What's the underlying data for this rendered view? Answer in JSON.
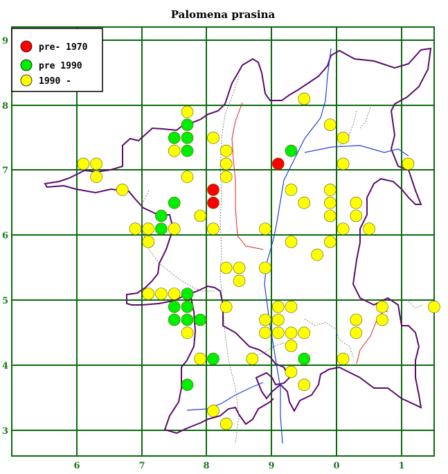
{
  "title": "Palomena prasina",
  "colors": {
    "grid": "#0b6b0b",
    "border": "#5b0a6a",
    "river": "#1f3fe0",
    "road": "#e02020",
    "pre1970": "#ff0000",
    "pre1990": "#00ee00",
    "post1990": "#ffff00"
  },
  "axes": {
    "x_labels": [
      "6",
      "7",
      "8",
      "9",
      "0",
      "1"
    ],
    "y_labels": [
      "9",
      "8",
      "7",
      "6",
      "5",
      "4",
      "3"
    ]
  },
  "legend": {
    "items": [
      {
        "label": "pre- 1970",
        "color_key": "pre1970"
      },
      {
        "label": "pre 1990",
        "color_key": "pre1990"
      },
      {
        "label": "1990 -",
        "color_key": "post1990"
      }
    ]
  },
  "records": {
    "pre1970": [
      [
        9.1,
        7.1
      ],
      [
        8.1,
        6.7
      ],
      [
        8.1,
        6.5
      ]
    ],
    "pre1990": [
      [
        7.7,
        7.7
      ],
      [
        7.5,
        7.5
      ],
      [
        7.7,
        7.5
      ],
      [
        7.7,
        7.3
      ],
      [
        9.3,
        7.3
      ],
      [
        7.5,
        6.5
      ],
      [
        7.3,
        6.3
      ],
      [
        7.3,
        6.1
      ],
      [
        7.7,
        5.1
      ],
      [
        7.5,
        4.9
      ],
      [
        7.7,
        4.9
      ],
      [
        7.5,
        4.7
      ],
      [
        7.7,
        4.7
      ],
      [
        7.9,
        4.7
      ],
      [
        8.1,
        4.1
      ],
      [
        9.5,
        4.1
      ],
      [
        7.7,
        3.7
      ]
    ],
    "post1990": [
      [
        7.7,
        7.9
      ],
      [
        9.5,
        8.1
      ],
      [
        9.9,
        7.7
      ],
      [
        8.1,
        7.5
      ],
      [
        10.1,
        7.5
      ],
      [
        7.5,
        7.3
      ],
      [
        8.3,
        7.3
      ],
      [
        6.1,
        7.1
      ],
      [
        6.3,
        7.1
      ],
      [
        8.3,
        7.1
      ],
      [
        10.1,
        7.1
      ],
      [
        11.1,
        7.1
      ],
      [
        6.3,
        6.9
      ],
      [
        7.7,
        6.9
      ],
      [
        8.3,
        6.9
      ],
      [
        6.7,
        6.7
      ],
      [
        9.3,
        6.7
      ],
      [
        9.9,
        6.7
      ],
      [
        9.5,
        6.5
      ],
      [
        9.9,
        6.5
      ],
      [
        10.3,
        6.5
      ],
      [
        7.9,
        6.3
      ],
      [
        9.9,
        6.3
      ],
      [
        10.3,
        6.3
      ],
      [
        6.9,
        6.1
      ],
      [
        7.1,
        6.1
      ],
      [
        7.5,
        6.1
      ],
      [
        8.1,
        6.1
      ],
      [
        8.9,
        6.1
      ],
      [
        10.1,
        6.1
      ],
      [
        10.5,
        6.1
      ],
      [
        7.1,
        5.9
      ],
      [
        9.3,
        5.9
      ],
      [
        9.9,
        5.9
      ],
      [
        9.7,
        5.7
      ],
      [
        8.3,
        5.5
      ],
      [
        8.5,
        5.5
      ],
      [
        8.9,
        5.5
      ],
      [
        8.5,
        5.3
      ],
      [
        7.1,
        5.1
      ],
      [
        7.3,
        5.1
      ],
      [
        7.5,
        5.1
      ],
      [
        8.3,
        4.9
      ],
      [
        9.1,
        4.9
      ],
      [
        9.3,
        4.9
      ],
      [
        10.7,
        4.9
      ],
      [
        11.5,
        4.9
      ],
      [
        8.9,
        4.7
      ],
      [
        9.1,
        4.7
      ],
      [
        10.3,
        4.7
      ],
      [
        10.7,
        4.7
      ],
      [
        7.7,
        4.5
      ],
      [
        8.9,
        4.5
      ],
      [
        9.1,
        4.5
      ],
      [
        9.3,
        4.5
      ],
      [
        9.5,
        4.5
      ],
      [
        10.3,
        4.5
      ],
      [
        9.3,
        4.3
      ],
      [
        7.9,
        4.1
      ],
      [
        8.7,
        4.1
      ],
      [
        10.1,
        4.1
      ],
      [
        9.3,
        3.9
      ],
      [
        9.5,
        3.7
      ],
      [
        8.1,
        3.3
      ],
      [
        8.3,
        3.1
      ]
    ]
  }
}
